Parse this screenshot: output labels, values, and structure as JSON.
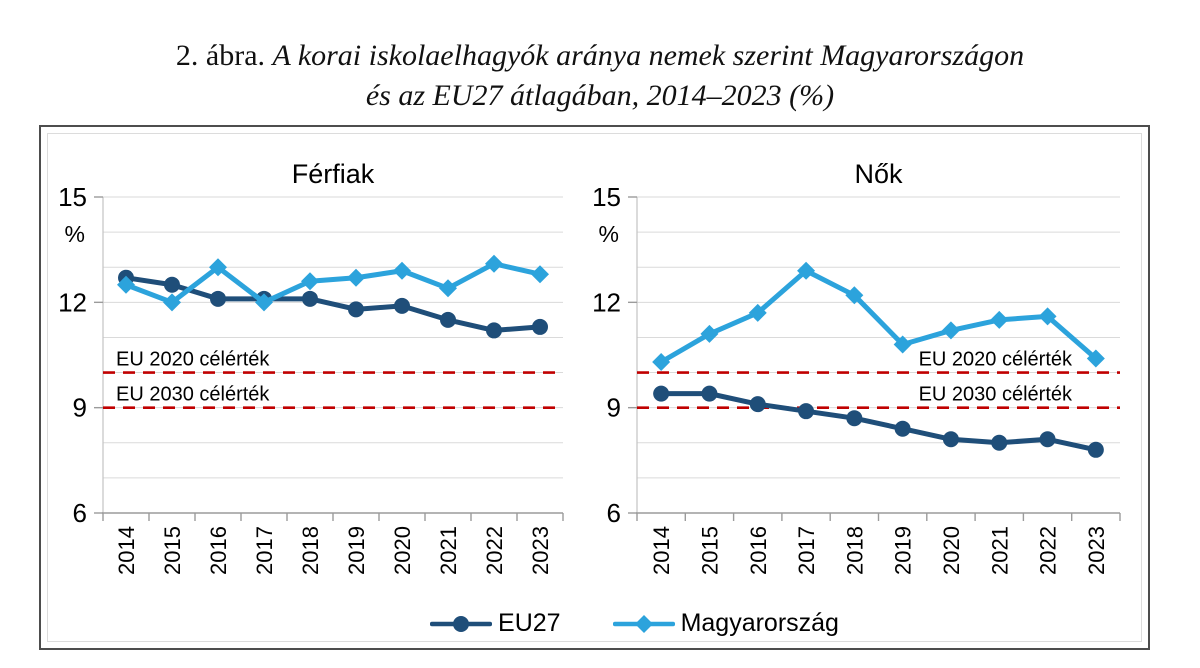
{
  "figure": {
    "caption_prefix": "2. ábra.",
    "caption_line1": "A korai iskolaelhagyók aránya nemek szerint Magyarországon",
    "caption_line2": "és az EU27 átlagában, 2014–2023 (%)"
  },
  "colors": {
    "eu27": "#1F4E79",
    "magyarorszag": "#2CA3DC",
    "target_line": "#C00000",
    "gridline": "#DADADA",
    "axis": "#9B9B9B"
  },
  "legend": {
    "position": "bottom",
    "items": [
      {
        "label": "EU27",
        "marker": "circle",
        "color": "#1F4E79"
      },
      {
        "label": "Magyarország",
        "marker": "diamond",
        "color": "#2CA3DC"
      }
    ]
  },
  "chart_data": [
    {
      "type": "line",
      "title": "Férfiak",
      "ylabel": "%",
      "ylim": [
        6,
        15
      ],
      "yticks": [
        6,
        9,
        12,
        15
      ],
      "grid": true,
      "categories": [
        "2014",
        "2015",
        "2016",
        "2017",
        "2018",
        "2019",
        "2020",
        "2021",
        "2022",
        "2023"
      ],
      "series": [
        {
          "name": "EU27",
          "color": "#1F4E79",
          "marker": "circle",
          "values": [
            12.7,
            12.5,
            12.1,
            12.1,
            12.1,
            11.8,
            11.9,
            11.5,
            11.2,
            11.3
          ]
        },
        {
          "name": "Magyarország",
          "color": "#2CA3DC",
          "marker": "diamond",
          "values": [
            12.5,
            12.0,
            13.0,
            12.0,
            12.6,
            12.7,
            12.9,
            12.4,
            13.1,
            12.8
          ]
        }
      ],
      "reference_lines": [
        {
          "label": "EU 2020 célérték",
          "value": 10,
          "color": "#C00000",
          "label_side": "left"
        },
        {
          "label": "EU 2030 célérték",
          "value": 9,
          "color": "#C00000",
          "label_side": "left"
        }
      ]
    },
    {
      "type": "line",
      "title": "Nők",
      "ylabel": "%",
      "ylim": [
        6,
        15
      ],
      "yticks": [
        6,
        9,
        12,
        15
      ],
      "grid": true,
      "categories": [
        "2014",
        "2015",
        "2016",
        "2017",
        "2018",
        "2019",
        "2020",
        "2021",
        "2022",
        "2023"
      ],
      "series": [
        {
          "name": "EU27",
          "color": "#1F4E79",
          "marker": "circle",
          "values": [
            9.4,
            9.4,
            9.1,
            8.9,
            8.7,
            8.4,
            8.1,
            8.0,
            8.1,
            7.8
          ]
        },
        {
          "name": "Magyarország",
          "color": "#2CA3DC",
          "marker": "diamond",
          "values": [
            10.3,
            11.1,
            11.7,
            12.9,
            12.2,
            10.8,
            11.2,
            11.5,
            11.6,
            10.4
          ]
        }
      ],
      "reference_lines": [
        {
          "label": "EU 2020 célérték",
          "value": 10,
          "color": "#C00000",
          "label_side": "right"
        },
        {
          "label": "EU 2030 célérték",
          "value": 9,
          "color": "#C00000",
          "label_side": "right"
        }
      ]
    }
  ]
}
